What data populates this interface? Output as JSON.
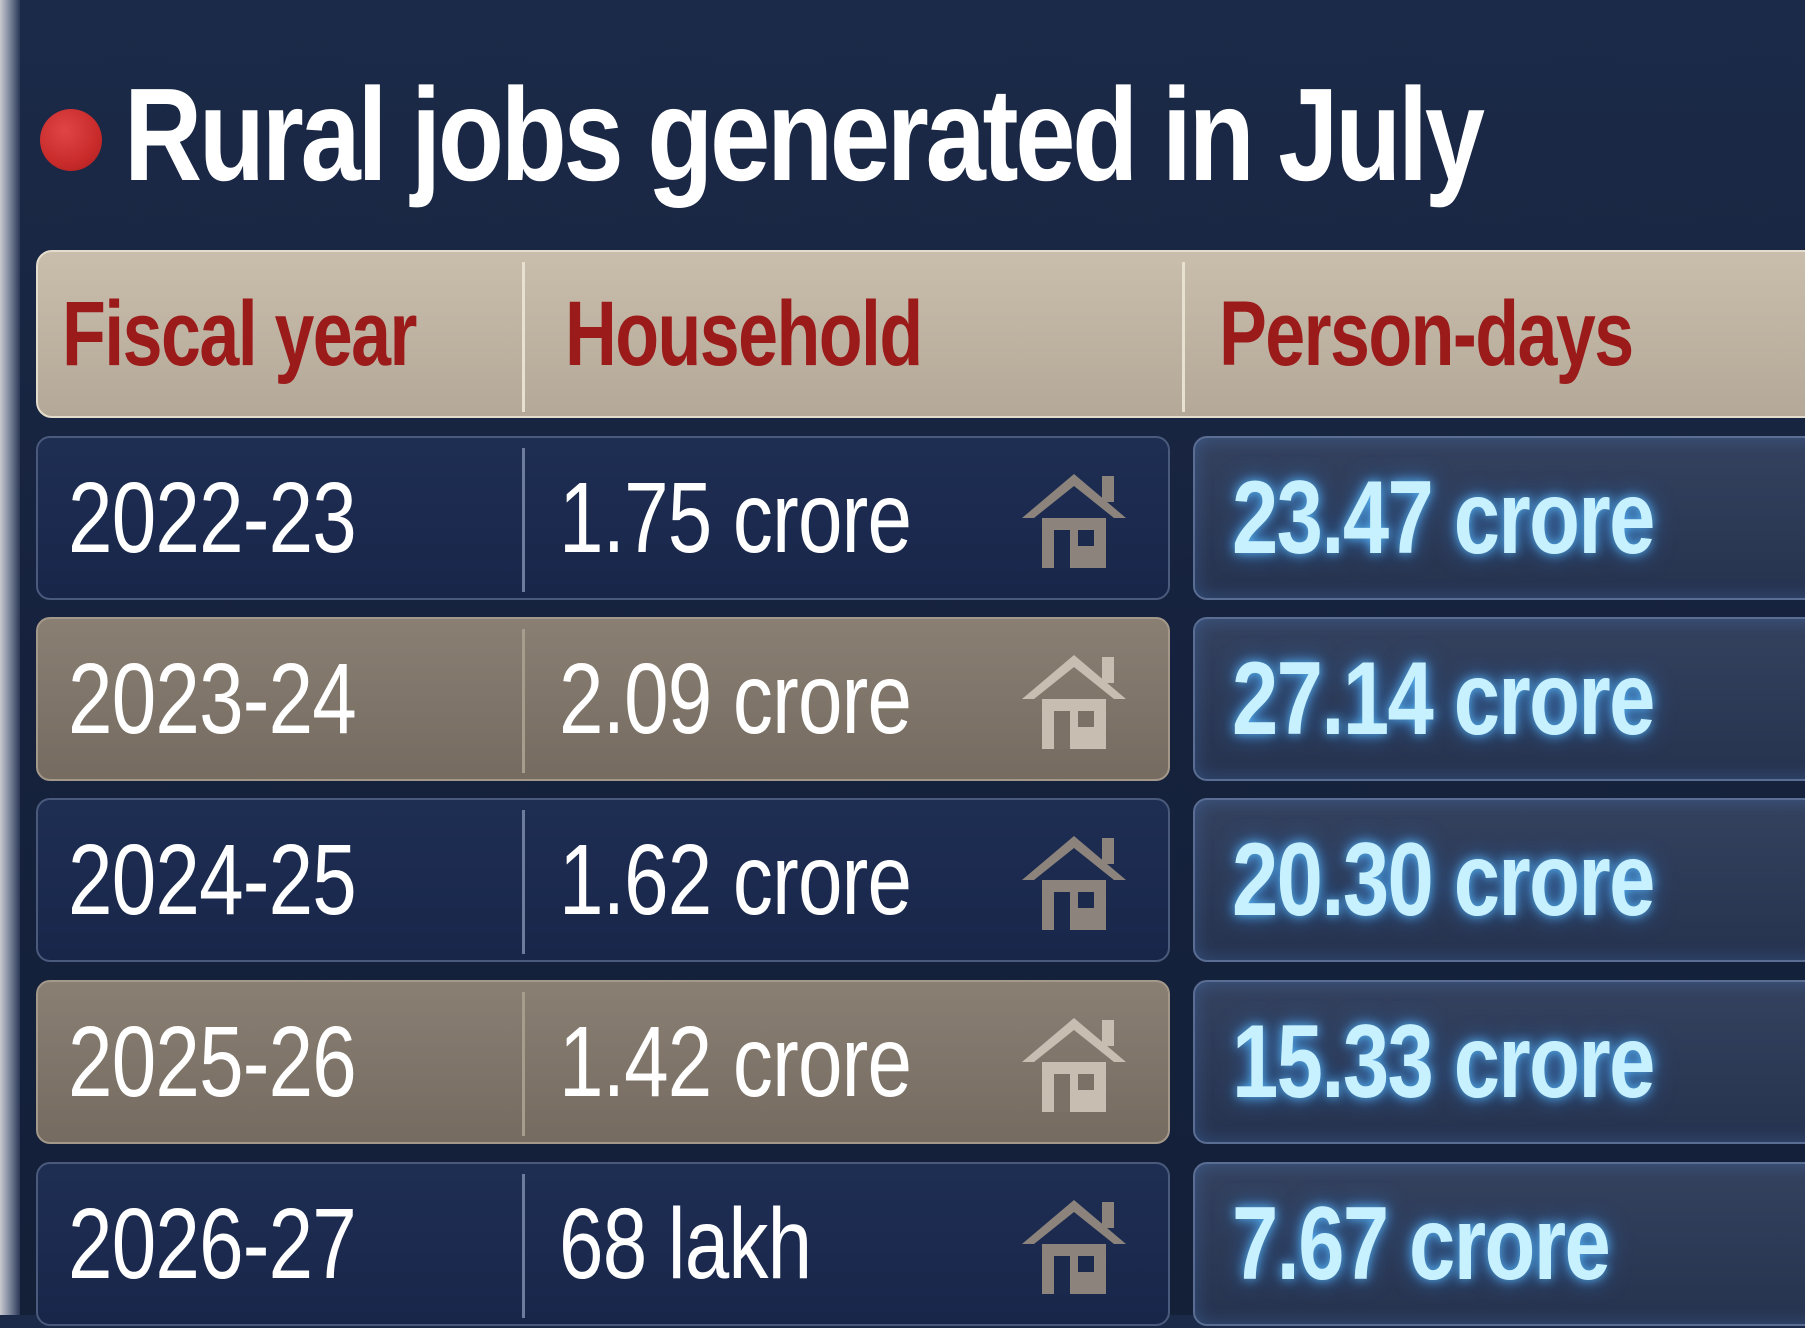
{
  "title": "Rural jobs generated in July",
  "colors": {
    "background": "#182644",
    "header_bg": "#bfb3a2",
    "header_text": "#9b1a1a",
    "bullet": "#c92b2b",
    "person_days_text": "#c8f1ff"
  },
  "header": {
    "col1": "Fiscal year",
    "col2": "Household",
    "col3": "Person-days"
  },
  "rows": [
    {
      "year": "2022-23",
      "household": "1.75 crore",
      "person_days": "23.47 crore",
      "icon": "house-icon"
    },
    {
      "year": "2023-24",
      "household": "2.09 crore",
      "person_days": "27.14 crore",
      "icon": "house-icon"
    },
    {
      "year": "2024-25",
      "household": "1.62 crore",
      "person_days": "20.30 crore",
      "icon": "house-icon"
    },
    {
      "year": "2025-26",
      "household": "1.42 crore",
      "person_days": "15.33 crore",
      "icon": "house-icon"
    },
    {
      "year": "2026-27",
      "household": "68 lakh",
      "person_days": "7.67 crore",
      "icon": "house-icon"
    }
  ],
  "chart_data": {
    "type": "table",
    "title": "Rural jobs generated in July",
    "columns": [
      "Fiscal year",
      "Household",
      "Person-days"
    ],
    "rows": [
      [
        "2022-23",
        "1.75 crore",
        "23.47 crore"
      ],
      [
        "2023-24",
        "2.09 crore",
        "27.14 crore"
      ],
      [
        "2024-25",
        "1.62 crore",
        "20.30 crore"
      ],
      [
        "2025-26",
        "1.42 crore",
        "15.33 crore"
      ],
      [
        "2026-27",
        "68 lakh",
        "7.67 crore"
      ]
    ]
  }
}
